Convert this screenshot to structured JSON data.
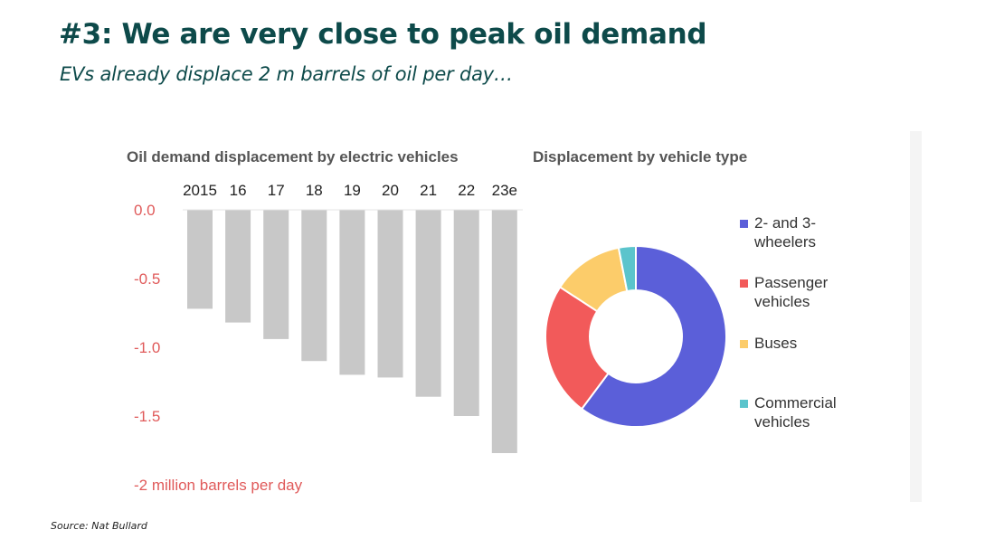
{
  "slide": {
    "title": "#3: We are very close to peak oil demand",
    "subtitle": "EVs already displace 2 m barrels of oil per day…",
    "source": "Source: Nat Bullard"
  },
  "chart_data": [
    {
      "type": "bar",
      "title": "Oil demand displacement by electric vehicles",
      "categories": [
        "2015",
        "16",
        "17",
        "18",
        "19",
        "20",
        "21",
        "22",
        "23e"
      ],
      "values": [
        -0.72,
        -0.82,
        -0.94,
        -1.1,
        -1.2,
        -1.22,
        -1.36,
        -1.5,
        -1.77
      ],
      "ylim": [
        -2.0,
        0.0
      ],
      "yticks": [
        {
          "value": 0.0,
          "label": "0.0"
        },
        {
          "value": -0.5,
          "label": "-0.5"
        },
        {
          "value": -1.0,
          "label": "-1.0"
        },
        {
          "value": -1.5,
          "label": "-1.5"
        },
        {
          "value": -2.0,
          "label": "-2 million barrels per day"
        }
      ],
      "bar_color": "#c8c8c8",
      "tick_color": "#e05a5a",
      "xaxis_position": "top"
    },
    {
      "type": "pie",
      "subtype": "donut",
      "title": "Displacement by vehicle type",
      "legend": "right",
      "slices": [
        {
          "label": "2- and 3-wheelers",
          "value": 59,
          "color": "#5b5fd9"
        },
        {
          "label": "Passenger vehicles",
          "value": 23.5,
          "color": "#f25a5a"
        },
        {
          "label": "Buses",
          "value": 12.5,
          "color": "#fccc6a"
        },
        {
          "label": "Commercial vehicles",
          "value": 3,
          "color": "#5bc4cc"
        }
      ]
    }
  ]
}
